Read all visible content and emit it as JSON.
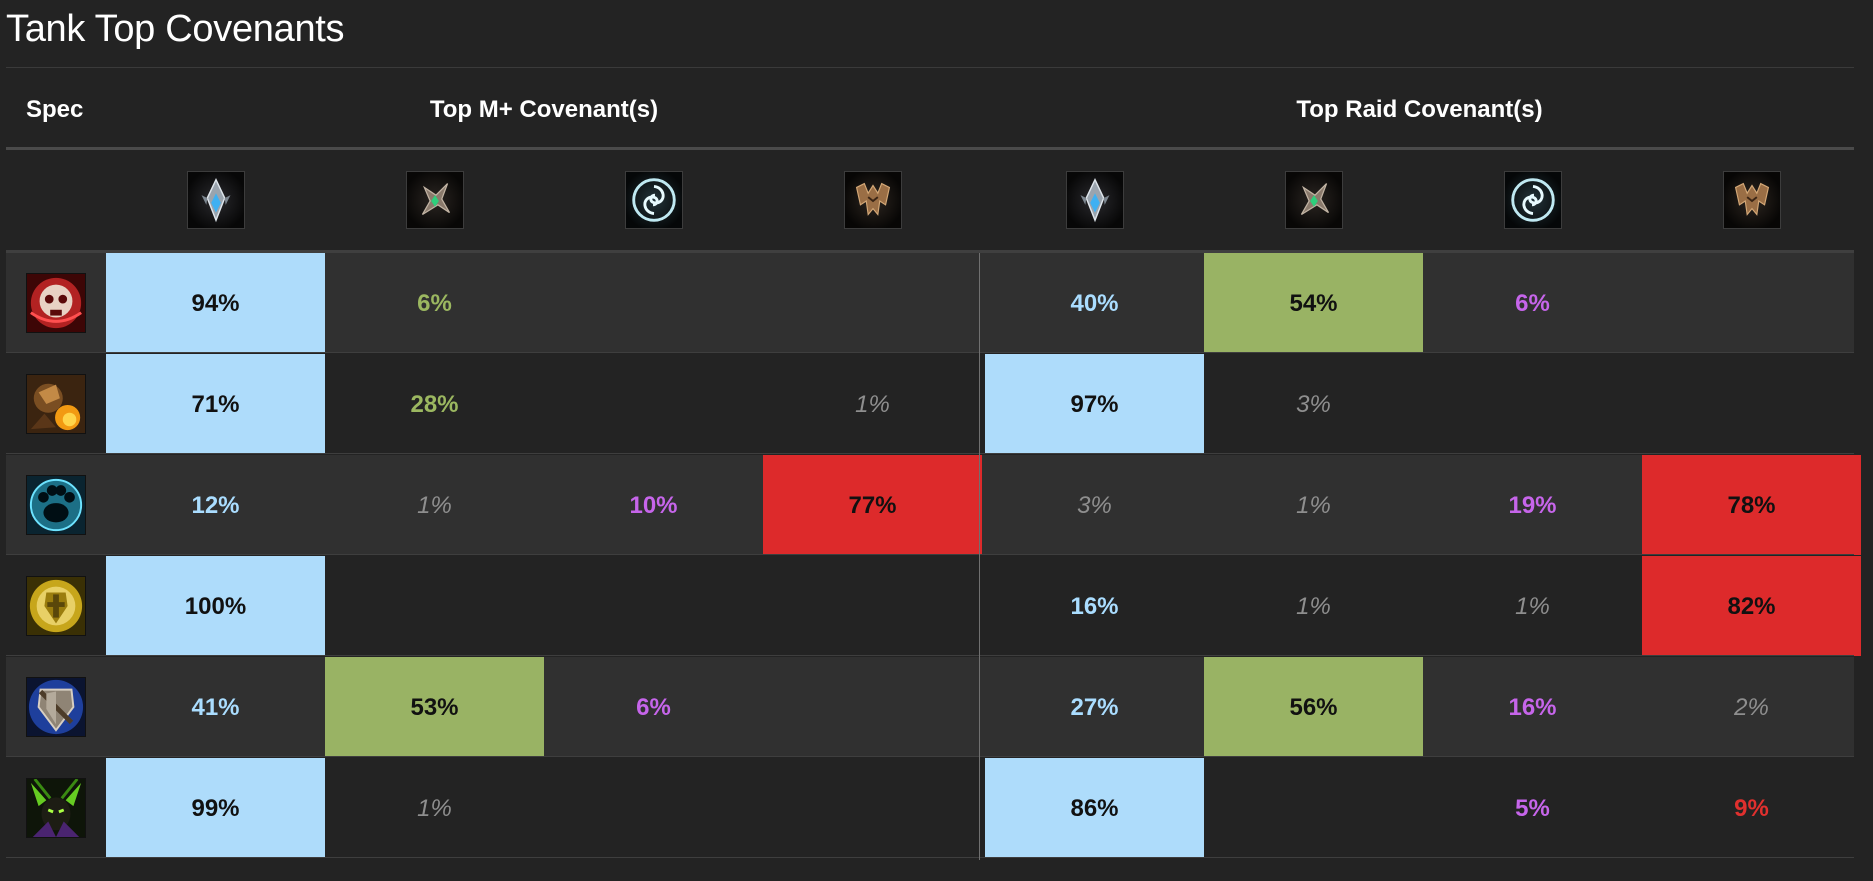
{
  "title": "Tank Top Covenants",
  "headers": {
    "spec": "Spec",
    "mplus": "Top M+ Covenant(s)",
    "raid": "Top Raid Covenant(s)"
  },
  "covenant_icons": [
    "kyrian-icon",
    "necrolord-icon",
    "night-fae-icon",
    "venthyr-icon",
    "kyrian-icon",
    "necrolord-icon",
    "night-fae-icon",
    "venthyr-icon"
  ],
  "colors": {
    "kyrian": "#aedcfb",
    "necrolord": "#99b364",
    "night_fae": "#c665ea",
    "venthyr": "#dd2a2b",
    "minor": "#8e8e8e"
  },
  "rows": [
    {
      "spec_icon": "blood-death-knight-icon",
      "cells": [
        {
          "text": "94%",
          "style": "fill-kyrian"
        },
        {
          "text": "6%",
          "style": "necrolord"
        },
        {
          "text": "",
          "style": ""
        },
        {
          "text": "",
          "style": ""
        },
        {
          "text": "40%",
          "style": "kyrian"
        },
        {
          "text": "54%",
          "style": "fill-necrolord"
        },
        {
          "text": "6%",
          "style": "nightfae"
        },
        {
          "text": "",
          "style": ""
        }
      ]
    },
    {
      "spec_icon": "brewmaster-monk-icon",
      "cells": [
        {
          "text": "71%",
          "style": "fill-kyrian"
        },
        {
          "text": "28%",
          "style": "necrolord"
        },
        {
          "text": "",
          "style": ""
        },
        {
          "text": "1%",
          "style": "grey"
        },
        {
          "text": "97%",
          "style": "fill-kyrian"
        },
        {
          "text": "3%",
          "style": "grey"
        },
        {
          "text": "",
          "style": ""
        },
        {
          "text": "",
          "style": ""
        }
      ]
    },
    {
      "spec_icon": "guardian-druid-icon",
      "cells": [
        {
          "text": "12%",
          "style": "kyrian"
        },
        {
          "text": "1%",
          "style": "grey"
        },
        {
          "text": "10%",
          "style": "nightfae"
        },
        {
          "text": "77%",
          "style": "fill-venthyr"
        },
        {
          "text": "3%",
          "style": "grey"
        },
        {
          "text": "1%",
          "style": "grey"
        },
        {
          "text": "19%",
          "style": "nightfae"
        },
        {
          "text": "78%",
          "style": "fill-venthyr"
        }
      ]
    },
    {
      "spec_icon": "protection-paladin-icon",
      "cells": [
        {
          "text": "100%",
          "style": "fill-kyrian"
        },
        {
          "text": "",
          "style": ""
        },
        {
          "text": "",
          "style": ""
        },
        {
          "text": "",
          "style": ""
        },
        {
          "text": "16%",
          "style": "kyrian"
        },
        {
          "text": "1%",
          "style": "grey"
        },
        {
          "text": "1%",
          "style": "grey"
        },
        {
          "text": "82%",
          "style": "fill-venthyr"
        }
      ]
    },
    {
      "spec_icon": "protection-warrior-icon",
      "cells": [
        {
          "text": "41%",
          "style": "kyrian"
        },
        {
          "text": "53%",
          "style": "fill-necrolord"
        },
        {
          "text": "6%",
          "style": "nightfae"
        },
        {
          "text": "",
          "style": ""
        },
        {
          "text": "27%",
          "style": "kyrian"
        },
        {
          "text": "56%",
          "style": "fill-necrolord"
        },
        {
          "text": "16%",
          "style": "nightfae"
        },
        {
          "text": "2%",
          "style": "grey"
        }
      ]
    },
    {
      "spec_icon": "vengeance-demon-hunter-icon",
      "cells": [
        {
          "text": "99%",
          "style": "fill-kyrian"
        },
        {
          "text": "1%",
          "style": "grey"
        },
        {
          "text": "",
          "style": ""
        },
        {
          "text": "",
          "style": ""
        },
        {
          "text": "86%",
          "style": "fill-kyrian"
        },
        {
          "text": "",
          "style": ""
        },
        {
          "text": "5%",
          "style": "nightfae"
        },
        {
          "text": "9%",
          "style": "venthyr"
        }
      ]
    }
  ]
}
